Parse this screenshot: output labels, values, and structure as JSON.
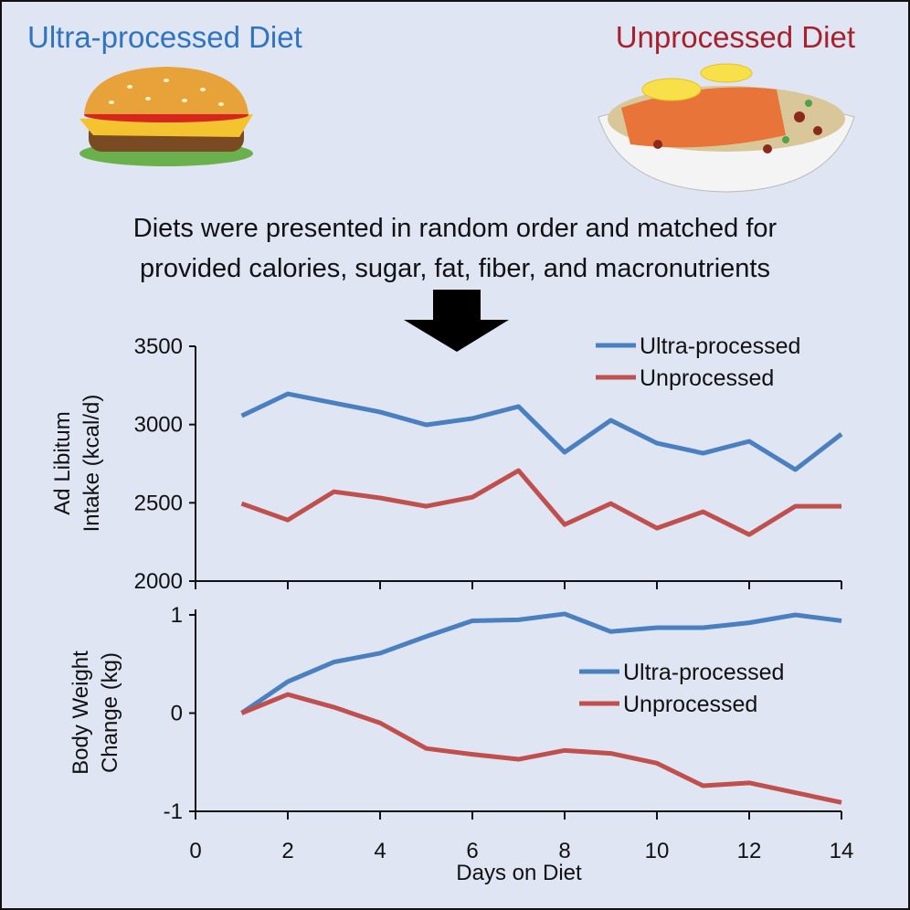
{
  "header": {
    "left_title": "Ultra-processed Diet",
    "right_title": "Unprocessed Diet",
    "description_line1": "Diets were presented in random order and matched for",
    "description_line2": "provided calories, sugar, fat, fiber, and macronutrients"
  },
  "colors": {
    "ultra": "#4a7fc0",
    "unprocessed": "#c0504d",
    "left_title": "#2f74c0",
    "right_title": "#a8202a",
    "background": "#dfe5f3"
  },
  "icons": {
    "left": "hamburger-illustration",
    "right": "salmon-plate-illustration",
    "arrow": "down-arrow"
  },
  "chart_data": [
    {
      "type": "line",
      "ylabel": "Ad Libitum Intake (kcal/d)",
      "ylabel_line1": "Ad Libitum",
      "ylabel_line2": "Intake (kcal/d)",
      "ylim": [
        2000,
        3500
      ],
      "yticks": [
        2000,
        2500,
        3000,
        3500
      ],
      "xlim": [
        0,
        14
      ],
      "legend": "top-right",
      "x": [
        1,
        2,
        3,
        4,
        5,
        6,
        7,
        8,
        9,
        10,
        11,
        12,
        13,
        14
      ],
      "series": [
        {
          "name": "Ultra-processed",
          "values": [
            3056,
            3196,
            3138,
            3080,
            2998,
            3039,
            3115,
            2823,
            3027,
            2881,
            2817,
            2893,
            2712,
            2939
          ]
        },
        {
          "name": "Unprocessed",
          "values": [
            2495,
            2390,
            2571,
            2531,
            2478,
            2536,
            2706,
            2361,
            2495,
            2338,
            2443,
            2297,
            2478,
            2478
          ]
        }
      ]
    },
    {
      "type": "line",
      "ylabel": "Body Weight Change (kg)",
      "ylabel_line1": "Body Weight",
      "ylabel_line2": "Change (kg)",
      "xlabel": "Days on Diet",
      "ylim": [
        -1,
        1
      ],
      "yticks": [
        -1,
        0,
        1
      ],
      "xlim": [
        0,
        14
      ],
      "xticks": [
        0,
        2,
        4,
        6,
        8,
        10,
        12,
        14
      ],
      "legend": "center-right",
      "x": [
        1,
        2,
        3,
        4,
        5,
        6,
        7,
        8,
        9,
        10,
        11,
        12,
        13,
        14
      ],
      "series": [
        {
          "name": "Ultra-processed",
          "values": [
            0,
            0.32,
            0.52,
            0.61,
            0.78,
            0.94,
            0.95,
            1.01,
            0.83,
            0.87,
            0.87,
            0.92,
            1.0,
            0.94
          ]
        },
        {
          "name": "Unprocessed",
          "values": [
            0,
            0.19,
            0.06,
            -0.1,
            -0.36,
            -0.42,
            -0.47,
            -0.38,
            -0.41,
            -0.51,
            -0.74,
            -0.71,
            -0.81,
            -0.91
          ]
        }
      ]
    }
  ]
}
